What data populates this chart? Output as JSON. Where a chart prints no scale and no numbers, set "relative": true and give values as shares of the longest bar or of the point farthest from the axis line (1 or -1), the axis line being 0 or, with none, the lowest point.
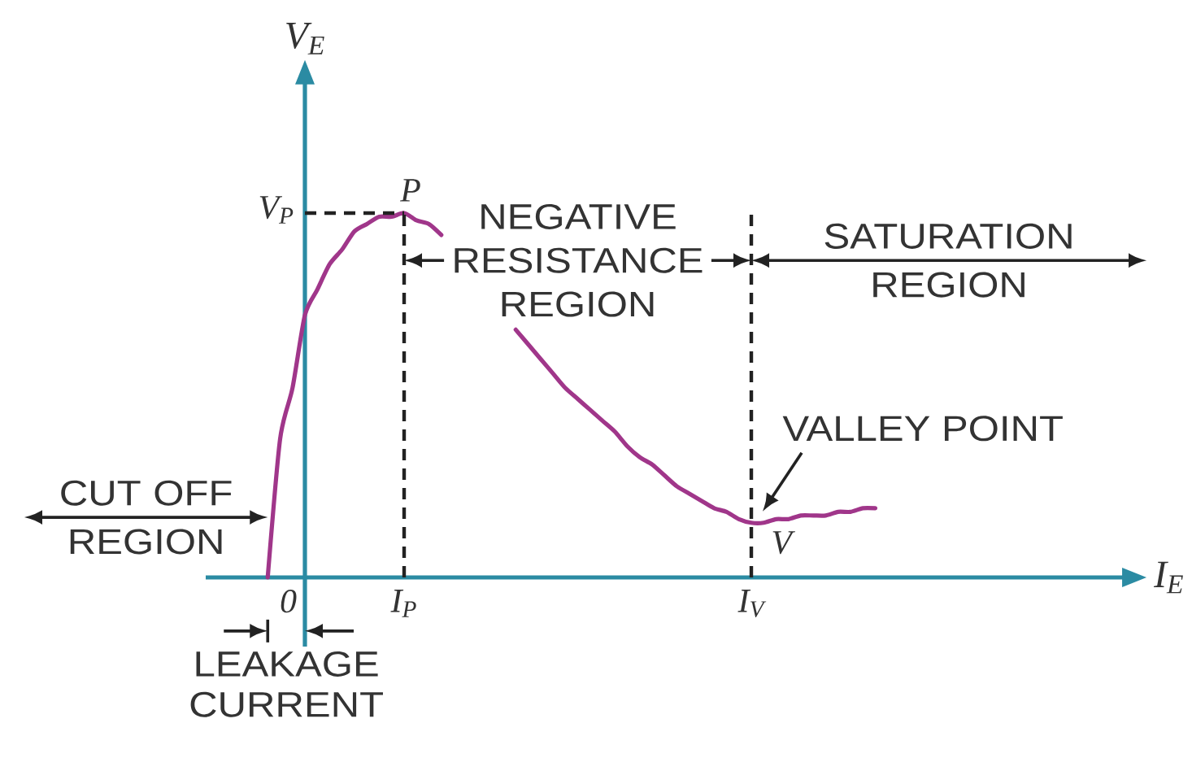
{
  "chart_data": {
    "type": "line",
    "relative": true,
    "xlabel": "I$_{E}$",
    "ylabel": "V$_{E}$",
    "categories": [
      null,
      null,
      null,
      null,
      null,
      null,
      null,
      null,
      "0",
      null,
      null,
      null,
      null,
      null,
      null,
      null,
      "I$_{P}$",
      null,
      null,
      null,
      null,
      null,
      null,
      null,
      null,
      null,
      null,
      null,
      null,
      null,
      null,
      null,
      null,
      null,
      null,
      null,
      null,
      null,
      null,
      null,
      null,
      null,
      null,
      null,
      "I$_{V}$",
      null,
      null,
      null,
      null,
      null,
      null,
      null,
      null,
      null,
      null,
      null,
      null,
      null,
      null,
      null,
      null,
      null,
      null,
      null,
      null,
      null,
      null,
      null,
      null,
      null,
      null,
      null,
      null,
      null,
      null,
      null
    ],
    "values": [
      null,
      null,
      null,
      null,
      null,
      0,
      0.38,
      0.52,
      0.72,
      0.79,
      0.86,
      0.9,
      0.95,
      0.97,
      0.99,
      0.99,
      1,
      0.98,
      0.97,
      0.94,
      null,
      null,
      null,
      null,
      null,
      0.68,
      0.64,
      0.6,
      0.56,
      0.52,
      0.49,
      0.46,
      0.43,
      0.4,
      0.36,
      0.33,
      0.31,
      0.28,
      0.25,
      0.23,
      0.21,
      0.19,
      0.18,
      0.16,
      0.15,
      0.15,
      0.16,
      0.16,
      0.17,
      0.17,
      0.17,
      0.18,
      0.18,
      0.19,
      0.19,
      null,
      null,
      null,
      null,
      null,
      null,
      null,
      null,
      null,
      null,
      null,
      null,
      null,
      null,
      null,
      null,
      null,
      null,
      null,
      null,
      null
    ],
    "color": "#a0368a",
    "ref_lines": [
      {
        "axis": "x",
        "value": "I$_{P}$",
        "line_style": "dashed"
      },
      {
        "axis": "x",
        "value": "I$_{V}$",
        "line_style": "dashed"
      },
      {
        "axis": "y",
        "value": 1,
        "label": "V$_{P}$",
        "line_style": "dashed"
      }
    ],
    "annotations": [
      "CUT OFF REGION",
      "LEAKAGE CURRENT",
      "NEGATIVE RESISTANCE REGION",
      "SATURATION REGION",
      {
        "text": "P",
        "x": "I$_{P}$",
        "y": 1
      },
      {
        "text": "V",
        "x": "I$_{V}$",
        "y": 0.15
      },
      {
        "text": "VALLEY POINT",
        "x": "I$_{V}$",
        "y": 0.15
      }
    ]
  }
}
